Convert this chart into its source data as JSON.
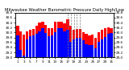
{
  "title": "Milwaukee Weather Barometric Pressure Daily High/Low",
  "title_fontsize": 3.8,
  "ylim": [
    29.0,
    30.8
  ],
  "yticks": [
    29.0,
    29.2,
    29.4,
    29.6,
    29.8,
    30.0,
    30.2,
    30.4,
    30.6,
    30.8
  ],
  "bar_width": 0.85,
  "background_color": "#ffffff",
  "high_color": "#ff0000",
  "low_color": "#0000ff",
  "dashed_indices": [
    17,
    18,
    19,
    20,
    21
  ],
  "days": [
    1,
    2,
    3,
    4,
    5,
    6,
    7,
    8,
    9,
    10,
    11,
    12,
    13,
    14,
    15,
    16,
    17,
    18,
    19,
    20,
    21,
    22,
    23,
    24,
    25,
    26,
    27,
    28,
    29,
    30,
    31
  ],
  "highs": [
    30.28,
    30.06,
    29.92,
    30.04,
    30.12,
    30.14,
    30.28,
    30.4,
    30.42,
    30.3,
    30.16,
    30.18,
    30.44,
    30.42,
    30.44,
    30.36,
    30.52,
    30.28,
    30.1,
    30.14,
    30.14,
    30.02,
    29.94,
    29.88,
    29.92,
    29.8,
    30.0,
    30.1,
    30.18,
    30.22,
    30.18
  ],
  "lows": [
    29.88,
    29.3,
    29.08,
    29.72,
    29.84,
    29.88,
    29.96,
    30.06,
    30.16,
    29.98,
    29.84,
    29.88,
    30.0,
    30.16,
    30.16,
    30.06,
    30.1,
    29.62,
    29.72,
    29.78,
    29.78,
    29.68,
    29.54,
    29.48,
    29.48,
    29.36,
    29.64,
    29.72,
    29.82,
    29.94,
    29.98
  ],
  "xtick_every": 2,
  "tick_fontsize": 3.0,
  "ytick_fontsize": 3.0
}
